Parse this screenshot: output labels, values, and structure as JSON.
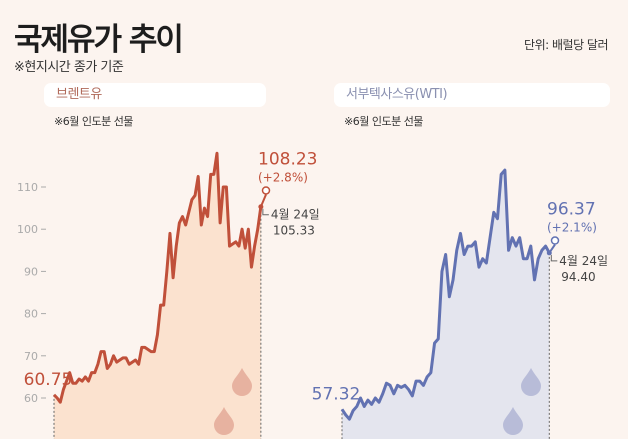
{
  "header": {
    "title": "국제유가 추이",
    "note": "※현지시간 종가 기준",
    "unit": "단위: 배럴당 달러"
  },
  "chart_data": [
    {
      "type": "area",
      "title": "브렌트유",
      "subtitle": "※6월 인도분 선물",
      "yticks": [
        60,
        70,
        80,
        90,
        100,
        110
      ],
      "ylim": [
        57,
        120
      ],
      "color": "#c0503a",
      "fill": "#fbe2cf",
      "values": [
        60.75,
        60,
        59,
        62,
        64,
        66,
        63.5,
        63.5,
        64.5,
        64,
        65,
        64,
        66,
        66,
        68,
        71,
        71,
        67,
        68,
        70,
        68.5,
        69,
        69.5,
        69.5,
        68,
        68.5,
        69,
        68,
        72,
        72,
        71.5,
        71,
        71,
        75,
        82,
        82,
        90,
        99,
        88.5,
        96,
        101.5,
        103,
        101,
        104,
        107,
        108,
        112.5,
        101,
        105,
        103,
        113,
        113,
        118,
        101.5,
        110,
        110,
        96,
        96.5,
        97,
        96,
        100,
        95.5,
        100,
        91,
        96,
        100,
        105.33,
        108.23
      ],
      "start_label": "60.75",
      "end_label": "108.23",
      "end_change": "(+2.8%)",
      "prev_date": "4월 24일",
      "prev_value": "105.33"
    },
    {
      "type": "area",
      "title": "서부텍사스유(WTI)",
      "subtitle": "※6월 인도분 선물",
      "ylim": [
        57,
        120
      ],
      "color": "#6272b2",
      "fill": "#e4e5ee",
      "values": [
        57.32,
        56,
        55,
        57,
        58,
        60,
        58,
        59.5,
        58.5,
        60,
        59,
        61,
        63.5,
        63,
        61,
        63,
        62.5,
        63,
        62,
        60.5,
        64,
        64,
        63,
        65,
        66,
        73,
        74,
        90,
        94,
        84,
        88,
        95,
        99,
        94,
        96,
        96,
        97,
        91,
        93,
        92,
        98,
        104,
        102.5,
        113,
        114,
        95,
        98,
        96,
        98,
        93,
        93,
        96,
        88,
        93,
        95,
        96,
        94.4,
        96.37
      ],
      "start_label": "57.32",
      "end_label": "96.37",
      "end_change": "(+2.1%)",
      "prev_date": "4월 24일",
      "prev_value": "94.40"
    }
  ]
}
